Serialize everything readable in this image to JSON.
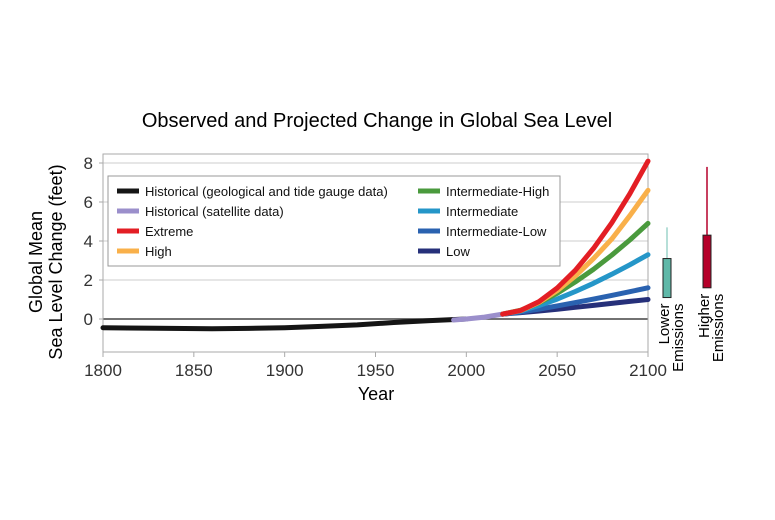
{
  "chart_data": {
    "type": "line",
    "title": "Observed and Projected Change in Global Sea Level",
    "xlabel": "Year",
    "ylabel": [
      "Global Mean",
      "Sea Level Change (feet)"
    ],
    "xlim": [
      1800,
      2100
    ],
    "ylim": [
      -1.7,
      8.4
    ],
    "xticks": [
      1800,
      1850,
      1900,
      1950,
      2000,
      2050,
      2100
    ],
    "yticks": [
      0,
      2,
      4,
      6,
      8
    ],
    "grid": "horizontal",
    "legend_placement": "top-left",
    "series": [
      {
        "name": "Historical (geological and tide gauge data)",
        "color": "#151515",
        "x": [
          1800,
          1830,
          1860,
          1880,
          1900,
          1920,
          1940,
          1960,
          1980,
          2000
        ],
        "y": [
          -0.45,
          -0.47,
          -0.5,
          -0.48,
          -0.45,
          -0.38,
          -0.3,
          -0.18,
          -0.08,
          0.0
        ]
      },
      {
        "name": "Historical (satellite data)",
        "color": "#9b8fcb",
        "x": [
          1993,
          2000,
          2010,
          2020
        ],
        "y": [
          -0.05,
          0.0,
          0.1,
          0.25
        ]
      },
      {
        "name": "Extreme",
        "color": "#e31e24",
        "x": [
          2020,
          2030,
          2040,
          2050,
          2060,
          2070,
          2080,
          2090,
          2100
        ],
        "y": [
          0.25,
          0.44,
          0.89,
          1.59,
          2.5,
          3.62,
          4.93,
          6.42,
          8.1
        ]
      },
      {
        "name": "High",
        "color": "#f9b04a",
        "x": [
          2020,
          2030,
          2040,
          2050,
          2060,
          2070,
          2080,
          2090,
          2100
        ],
        "y": [
          0.25,
          0.43,
          0.85,
          1.45,
          2.2,
          3.1,
          4.1,
          5.3,
          6.6
        ]
      },
      {
        "name": "Intermediate-High",
        "color": "#4a9a3d",
        "x": [
          2020,
          2030,
          2040,
          2050,
          2060,
          2070,
          2080,
          2090,
          2100
        ],
        "y": [
          0.25,
          0.45,
          0.83,
          1.32,
          1.9,
          2.55,
          3.27,
          4.05,
          4.9
        ]
      },
      {
        "name": "Intermediate",
        "color": "#2596c8",
        "x": [
          2020,
          2030,
          2040,
          2050,
          2060,
          2070,
          2080,
          2090,
          2100
        ],
        "y": [
          0.25,
          0.41,
          0.69,
          1.02,
          1.41,
          1.83,
          2.29,
          2.78,
          3.3
        ]
      },
      {
        "name": "Intermediate-Low",
        "color": "#2a62b0",
        "x": [
          2020,
          2030,
          2040,
          2050,
          2060,
          2070,
          2080,
          2090,
          2100
        ],
        "y": [
          0.25,
          0.36,
          0.51,
          0.67,
          0.84,
          1.02,
          1.21,
          1.4,
          1.6
        ]
      },
      {
        "name": "Low",
        "color": "#26307a",
        "x": [
          2020,
          2030,
          2040,
          2050,
          2060,
          2070,
          2080,
          2090,
          2100
        ],
        "y": [
          0.25,
          0.33,
          0.41,
          0.5,
          0.6,
          0.7,
          0.8,
          0.9,
          1.0
        ]
      }
    ],
    "ranges_2100": [
      {
        "label": [
          "Lower",
          "Emissions"
        ],
        "color": "#5fb8a8",
        "box": [
          1.1,
          3.1
        ],
        "whisker_top": 4.7
      },
      {
        "label": [
          "Higher",
          "Emissions"
        ],
        "color": "#b5002a",
        "box": [
          1.6,
          4.3
        ],
        "whisker_top": 7.8
      }
    ]
  }
}
